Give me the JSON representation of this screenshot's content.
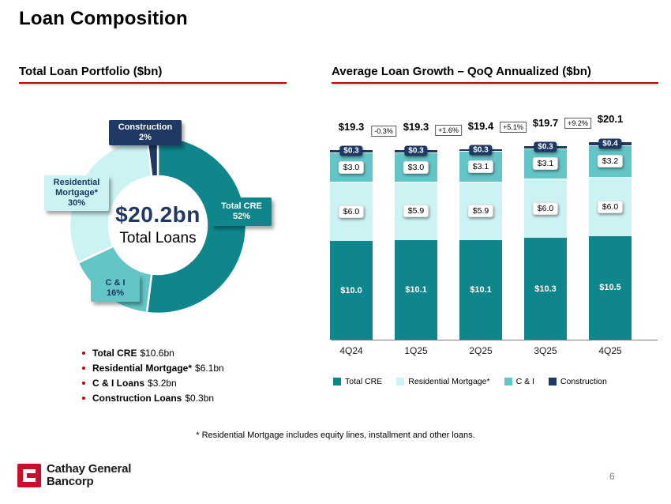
{
  "slide": {
    "title": "Loan Composition",
    "footnote": "*  Residential Mortgage includes equity lines, installment and other loans.",
    "page_number": "6",
    "logo_line1": "Cathay General",
    "logo_line2": "Bancorp"
  },
  "left_panel": {
    "heading": "Total Loan Portfolio ($bn)",
    "center_value": "$20.2bn",
    "center_label": "Total Loans",
    "bullets": [
      {
        "label": "Total CRE",
        "value": "$10.6bn"
      },
      {
        "label": "Residential Mortgage*",
        "value": "$6.1bn"
      },
      {
        "label": "C & I Loans",
        "value": "$3.2bn"
      },
      {
        "label": "Construction Loans",
        "value": "$0.3bn"
      }
    ]
  },
  "right_panel": {
    "heading": "Average Loan Growth – QoQ Annualized ($bn)"
  },
  "colors": {
    "total_cre": "#0E868B",
    "residential_mortgage": "#CDF2F3",
    "c_and_i": "#63C5C6",
    "construction": "#1F3864",
    "accent_red": "#C00000",
    "navy_text": "#1F3864",
    "logo_red": "#C8102E"
  },
  "chart_data": [
    {
      "type": "pie",
      "donut": true,
      "title": "Total Loan Portfolio ($bn)",
      "center_value": "$20.2bn",
      "center_label": "Total Loans",
      "segments": [
        {
          "key": "total-cre",
          "label": "Total CRE",
          "pct": 52,
          "color": "#0E868B"
        },
        {
          "key": "c-and-i",
          "label": "C & I",
          "pct": 16,
          "color": "#63C5C6"
        },
        {
          "key": "residential-mortgage",
          "label": "Residential Mortgage*",
          "pct": 30,
          "color": "#CDF2F3"
        },
        {
          "key": "construction",
          "label": "Construction",
          "pct": 2,
          "color": "#1F3864"
        }
      ],
      "callouts": [
        {
          "key": "construction",
          "lines": [
            "Construction",
            "2%"
          ],
          "bg": "#1F3864",
          "fg": "#FFFFFF"
        },
        {
          "key": "residential-mortgage",
          "lines": [
            "Residential",
            "Mortgage*",
            "30%"
          ],
          "bg": "#CDF2F3",
          "fg": "#17375E"
        },
        {
          "key": "total-cre",
          "lines": [
            "Total CRE",
            "52%"
          ],
          "bg": "#0E868B",
          "fg": "#FFFFFF"
        },
        {
          "key": "c-and-i",
          "lines": [
            "C & I",
            "16%"
          ],
          "bg": "#63C5C6",
          "fg": "#17375E"
        }
      ]
    },
    {
      "type": "bar",
      "stacked": true,
      "title": "Average Loan Growth – QoQ Annualized ($bn)",
      "categories": [
        "4Q24",
        "1Q25",
        "2Q25",
        "3Q25",
        "4Q25"
      ],
      "series": [
        {
          "name": "Total CRE",
          "color": "#0E868B",
          "values": [
            10.0,
            10.1,
            10.1,
            10.3,
            10.5
          ],
          "labels": [
            "$10.0",
            "$10.1",
            "$10.1",
            "$10.3",
            "$10.5"
          ],
          "label_style": "on-dark"
        },
        {
          "name": "Residential Mortgage*",
          "color": "#CDF2F3",
          "values": [
            6.0,
            5.9,
            5.9,
            6.0,
            6.0
          ],
          "labels": [
            "$6.0",
            "$5.9",
            "$5.9",
            "$6.0",
            "$6.0"
          ],
          "label_style": "boxed"
        },
        {
          "name": "C & I",
          "color": "#63C5C6",
          "values": [
            3.0,
            3.0,
            3.1,
            3.1,
            3.2
          ],
          "labels": [
            "$3.0",
            "$3.0",
            "$3.1",
            "$3.1",
            "$3.2"
          ],
          "label_style": "boxed"
        },
        {
          "name": "Construction",
          "color": "#1F3864",
          "values": [
            0.3,
            0.3,
            0.3,
            0.3,
            0.4
          ],
          "labels": [
            "$0.3",
            "$0.3",
            "$0.3",
            "$0.3",
            "$0.4"
          ],
          "label_style": "navy-box"
        }
      ],
      "totals": [
        19.3,
        19.3,
        19.4,
        19.7,
        20.1
      ],
      "total_labels": [
        "$19.3",
        "$19.3",
        "$19.4",
        "$19.7",
        "$20.1"
      ],
      "growth_labels": [
        "-0.3%",
        "+1.6%",
        "+5.1%",
        "+9.2%"
      ],
      "ylim": [
        0,
        22
      ],
      "legend": [
        "Total CRE",
        "Residential Mortgage*",
        "C & I",
        "Construction"
      ],
      "legend_position": "bottom"
    }
  ]
}
